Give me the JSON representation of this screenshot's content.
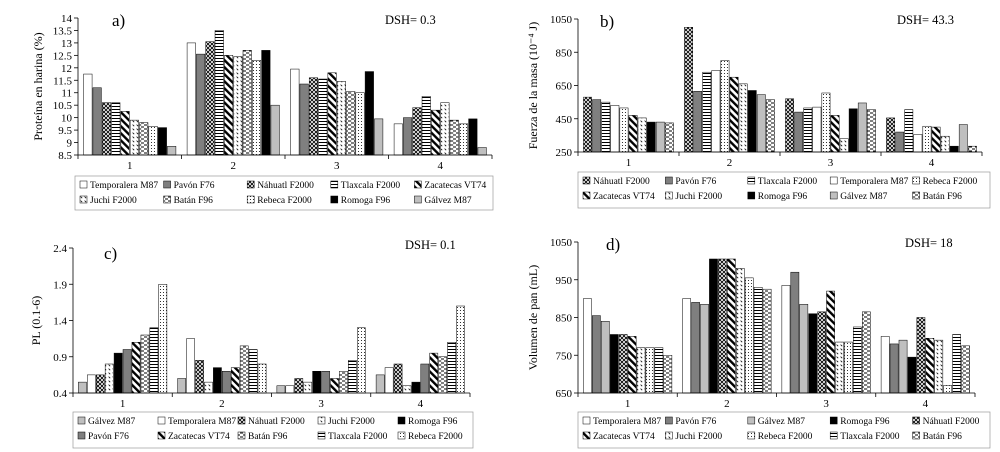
{
  "chart_data": [
    {
      "type": "bar",
      "title": "a)",
      "annotation": "DSH= 0.3",
      "xlabel": "",
      "ylabel": "Proteína en harina (%)",
      "ylim": [
        8.5,
        14
      ],
      "yticks": [
        8.5,
        9,
        9.5,
        10,
        10.5,
        11,
        11.5,
        12,
        12.5,
        13,
        13.5,
        14
      ],
      "categories": [
        "1",
        "2",
        "3",
        "4"
      ],
      "legend_position": "bottom",
      "series": [
        {
          "name": "Temporalera M87",
          "values": [
            11.75,
            13.0,
            11.95,
            9.75
          ]
        },
        {
          "name": "Pavón F76",
          "values": [
            11.2,
            12.55,
            11.35,
            10.0
          ]
        },
        {
          "name": "Náhuatl F2000",
          "values": [
            10.6,
            13.05,
            11.6,
            10.4
          ]
        },
        {
          "name": "Tlaxcala F2000",
          "values": [
            10.6,
            13.5,
            11.55,
            10.85
          ]
        },
        {
          "name": "Zacatecas VT74",
          "values": [
            10.25,
            12.5,
            11.8,
            10.3
          ]
        },
        {
          "name": "Juchi F2000",
          "values": [
            9.9,
            12.45,
            11.45,
            10.6
          ]
        },
        {
          "name": "Batán F96",
          "values": [
            9.8,
            12.7,
            11.05,
            9.9
          ]
        },
        {
          "name": "Rebeca F2000",
          "values": [
            9.65,
            12.3,
            11.0,
            9.75
          ]
        },
        {
          "name": "Romoga F96",
          "values": [
            9.6,
            12.7,
            11.85,
            9.95
          ]
        },
        {
          "name": "Gálvez M87",
          "values": [
            8.85,
            10.5,
            9.95,
            8.8
          ]
        }
      ]
    },
    {
      "type": "bar",
      "title": "b)",
      "annotation": "DSH= 43.3",
      "xlabel": "",
      "ylabel": "Fuerza de la masa (10⁻⁴ J)",
      "ylim": [
        250,
        1050
      ],
      "yticks": [
        250,
        450,
        650,
        850,
        1050
      ],
      "categories": [
        "1",
        "2",
        "3",
        "4"
      ],
      "legend_position": "bottom",
      "series": [
        {
          "name": "Náhuatl F2000",
          "values": [
            580,
            1000,
            570,
            455
          ]
        },
        {
          "name": "Pavón F76",
          "values": [
            565,
            615,
            490,
            370
          ]
        },
        {
          "name": "Tlaxcala F2000",
          "values": [
            550,
            730,
            515,
            505
          ]
        },
        {
          "name": "Temporalera M87",
          "values": [
            530,
            740,
            520,
            355
          ]
        },
        {
          "name": "Rebeca F2000",
          "values": [
            515,
            800,
            605,
            405
          ]
        },
        {
          "name": "Zacatecas VT74",
          "values": [
            470,
            700,
            470,
            400
          ]
        },
        {
          "name": "Juchi F2000",
          "values": [
            455,
            660,
            330,
            345
          ]
        },
        {
          "name": "Romoga F96",
          "values": [
            430,
            620,
            510,
            285
          ]
        },
        {
          "name": "Gálvez M87",
          "values": [
            430,
            595,
            545,
            415
          ]
        },
        {
          "name": "Batán F96",
          "values": [
            425,
            565,
            505,
            285
          ]
        }
      ]
    },
    {
      "type": "bar",
      "title": "c)",
      "annotation": "DSH= 0.1",
      "xlabel": "",
      "ylabel": "PL (0.1-6)",
      "ylim": [
        0.4,
        2.4
      ],
      "yticks": [
        0.4,
        0.9,
        1.4,
        1.9,
        2.4
      ],
      "categories": [
        "1",
        "2",
        "3",
        "4"
      ],
      "legend_position": "bottom",
      "series": [
        {
          "name": "Gálvez M87",
          "values": [
            0.55,
            0.6,
            0.5,
            0.65
          ]
        },
        {
          "name": "Temporalera M87",
          "values": [
            0.65,
            1.15,
            0.5,
            0.75
          ]
        },
        {
          "name": "Náhuatl F2000",
          "values": [
            0.65,
            0.85,
            0.6,
            0.8
          ]
        },
        {
          "name": "Juchi F2000",
          "values": [
            0.8,
            0.55,
            0.55,
            0.5
          ]
        },
        {
          "name": "Romoga F96",
          "values": [
            0.95,
            0.75,
            0.7,
            0.55
          ]
        },
        {
          "name": "Pavón F76",
          "values": [
            1.0,
            0.7,
            0.7,
            0.8
          ]
        },
        {
          "name": "Zacatecas VT74",
          "values": [
            1.1,
            0.75,
            0.6,
            0.95
          ]
        },
        {
          "name": "Batán F96",
          "values": [
            1.2,
            1.05,
            0.7,
            0.9
          ]
        },
        {
          "name": "Tlaxcala F2000",
          "values": [
            1.3,
            1.0,
            0.85,
            1.1
          ]
        },
        {
          "name": "Rebeca F2000",
          "values": [
            1.9,
            0.8,
            1.3,
            1.6
          ]
        }
      ]
    },
    {
      "type": "bar",
      "title": "d)",
      "annotation": "DSH= 18",
      "xlabel": "",
      "ylabel": "Volumen de pan (mL)",
      "ylim": [
        650,
        1050
      ],
      "yticks": [
        650,
        750,
        850,
        950,
        1050
      ],
      "categories": [
        "1",
        "2",
        "3",
        "4"
      ],
      "legend_position": "bottom",
      "series": [
        {
          "name": "Temporalera M87",
          "values": [
            900,
            900,
            935,
            800
          ]
        },
        {
          "name": "Pavón F76",
          "values": [
            855,
            890,
            970,
            780
          ]
        },
        {
          "name": "Gálvez M87",
          "values": [
            840,
            885,
            885,
            790
          ]
        },
        {
          "name": "Romoga F96",
          "values": [
            805,
            1005,
            860,
            745
          ]
        },
        {
          "name": "Náhuatl F2000",
          "values": [
            805,
            1005,
            865,
            850
          ]
        },
        {
          "name": "Zacatecas VT74",
          "values": [
            800,
            1005,
            920,
            795
          ]
        },
        {
          "name": "Juchi F2000",
          "values": [
            770,
            980,
            785,
            790
          ]
        },
        {
          "name": "Rebeca F2000",
          "values": [
            770,
            955,
            785,
            670
          ]
        },
        {
          "name": "Tlaxcala F2000",
          "values": [
            770,
            930,
            825,
            805
          ]
        },
        {
          "name": "Batán F96",
          "values": [
            750,
            925,
            865,
            775
          ]
        }
      ]
    }
  ]
}
